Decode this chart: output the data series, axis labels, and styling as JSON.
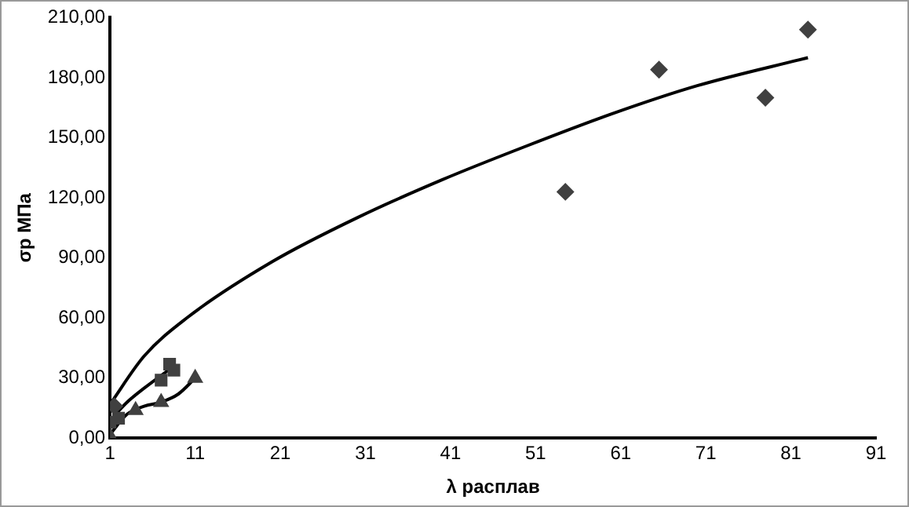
{
  "chart_data": {
    "type": "scatter",
    "xlabel": "λ расплав",
    "ylabel": "σр МПа",
    "xlim": [
      1,
      91
    ],
    "xticks": [
      1,
      11,
      21,
      31,
      41,
      51,
      61,
      71,
      81,
      91
    ],
    "ylim": [
      0,
      210
    ],
    "yticks": [
      {
        "value": 0,
        "label": "0,00"
      },
      {
        "value": 30,
        "label": "30,00"
      },
      {
        "value": 60,
        "label": "60,00"
      },
      {
        "value": 90,
        "label": "90,00"
      },
      {
        "value": 120,
        "label": "120,00"
      },
      {
        "value": 150,
        "label": "150,00"
      },
      {
        "value": 180,
        "label": "180,00"
      },
      {
        "value": 210,
        "label": "210,00"
      }
    ],
    "grid": false,
    "legend": false,
    "series": [
      {
        "type": "scatter",
        "marker": "diamond",
        "color": "#404040",
        "x": [
          1.5,
          54.5,
          65.5,
          78,
          83
        ],
        "values": [
          16,
          123,
          184,
          170,
          204
        ]
      },
      {
        "type": "scatter",
        "marker": "square",
        "color": "#404040",
        "x": [
          1,
          2,
          7,
          8,
          8.5
        ],
        "values": [
          8,
          10,
          29,
          37,
          34
        ]
      },
      {
        "type": "scatter",
        "marker": "triangle",
        "color": "#404040",
        "x": [
          1,
          2,
          4,
          7,
          11
        ],
        "values": [
          1,
          null,
          14,
          18,
          30
        ]
      },
      {
        "type": "line",
        "marker": "none",
        "color": "#000000",
        "x": [
          1,
          5,
          10,
          20,
          30,
          40,
          50,
          60,
          70,
          83
        ],
        "values": [
          17,
          41,
          60,
          88,
          110,
          129,
          146,
          162,
          176,
          190
        ]
      },
      {
        "type": "line",
        "marker": "none",
        "color": "#000000",
        "x": [
          1,
          3,
          5,
          8.5
        ],
        "values": [
          9,
          18,
          25,
          36
        ]
      },
      {
        "type": "line",
        "marker": "none",
        "color": "#000000",
        "x": [
          1,
          3,
          5,
          7,
          9,
          11
        ],
        "values": [
          2,
          12,
          16,
          18,
          22,
          30
        ]
      }
    ]
  }
}
